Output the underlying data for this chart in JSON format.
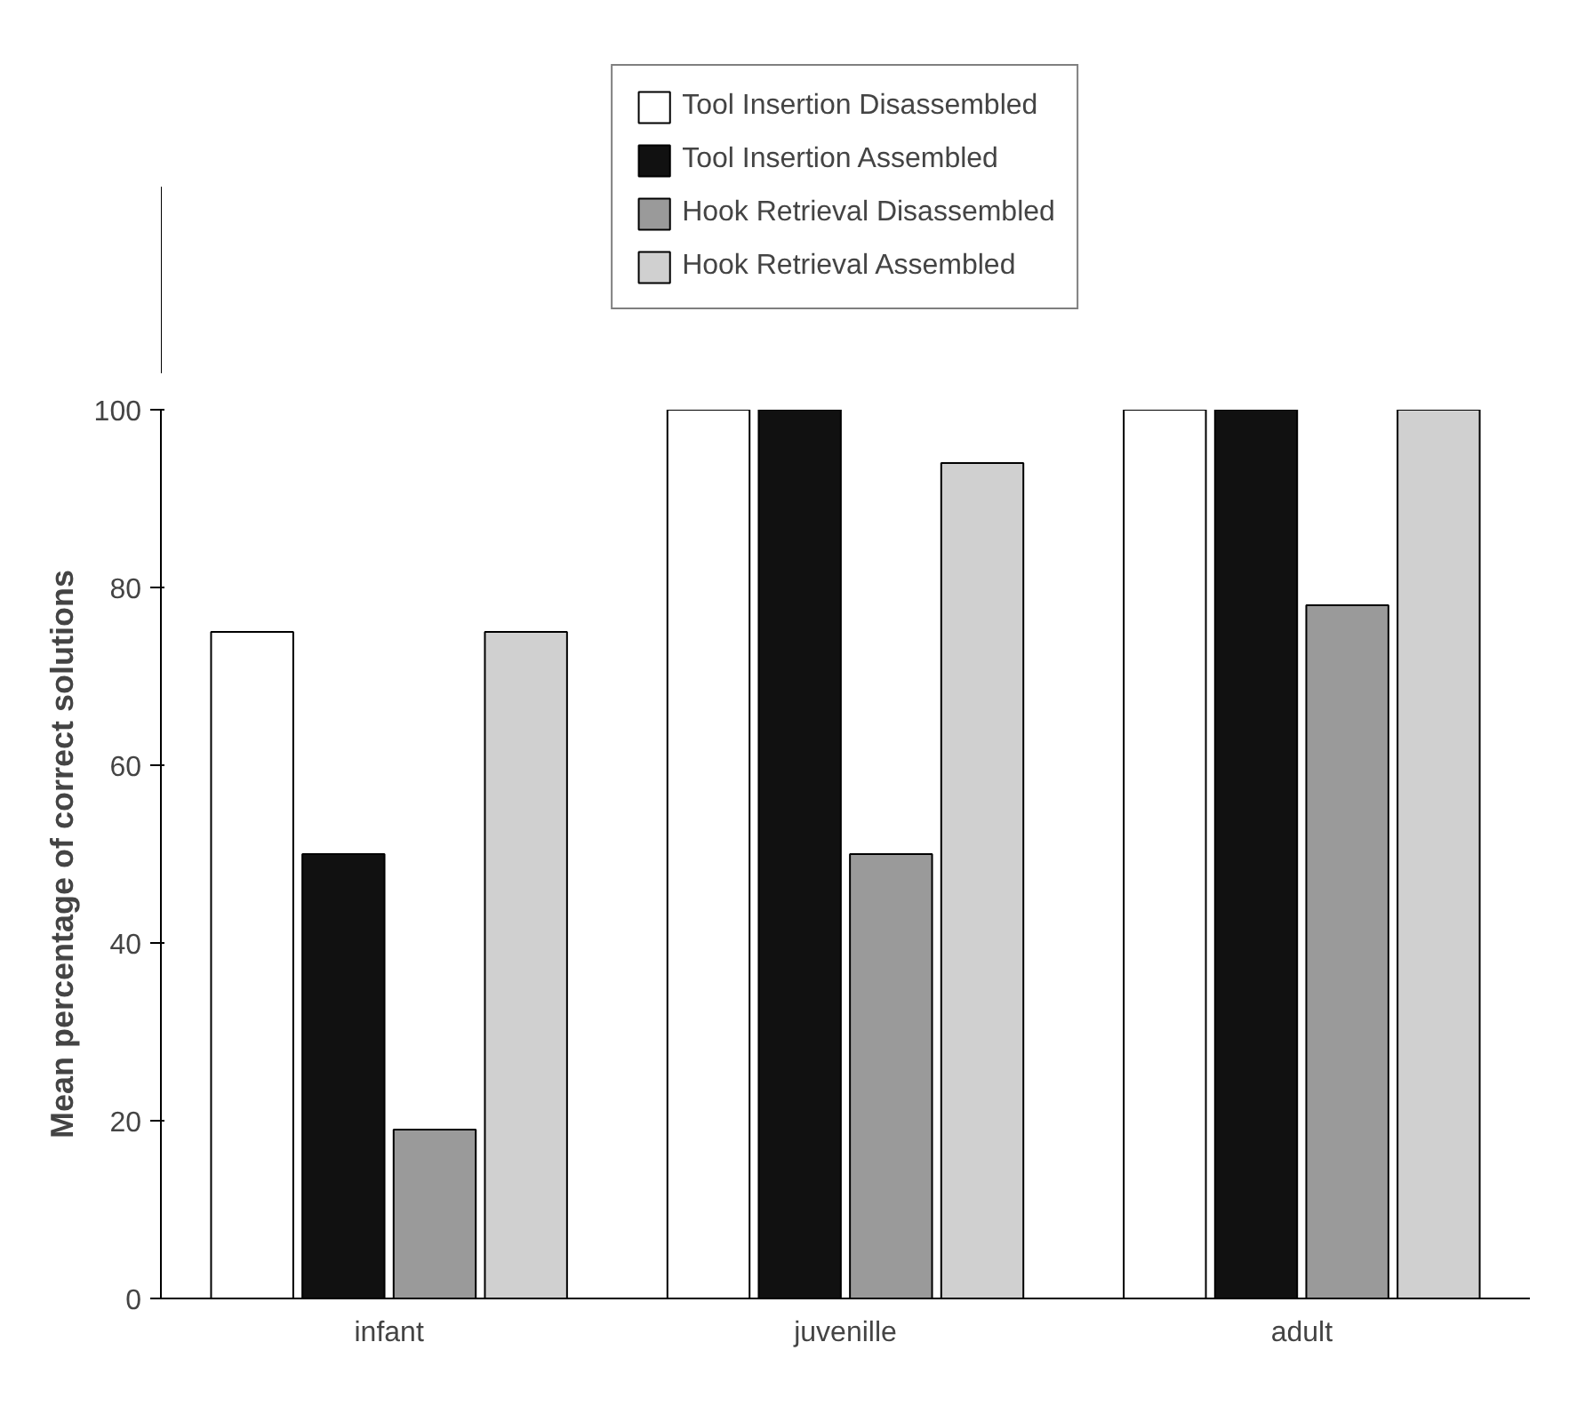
{
  "chart_data": {
    "type": "bar",
    "ylabel": "Mean percentage of correct solutions",
    "categories": [
      "infant",
      "juvenille",
      "adult"
    ],
    "series": [
      {
        "name": "Tool Insertion Disassembled",
        "color": "#ffffff",
        "values": [
          75,
          100,
          100
        ]
      },
      {
        "name": "Tool Insertion Assembled",
        "color": "#111111",
        "values": [
          50,
          100,
          100
        ]
      },
      {
        "name": "Hook Retrieval Disassembled",
        "color": "#9a9a9a",
        "values": [
          19,
          50,
          78
        ]
      },
      {
        "name": "Hook Retrieval Assembled",
        "color": "#d0d0d0",
        "values": [
          75,
          94,
          100
        ]
      }
    ],
    "ylim": [
      0,
      100
    ],
    "yticks": [
      0,
      20,
      40,
      60,
      80,
      100
    ],
    "grid": false,
    "legend": "top"
  }
}
